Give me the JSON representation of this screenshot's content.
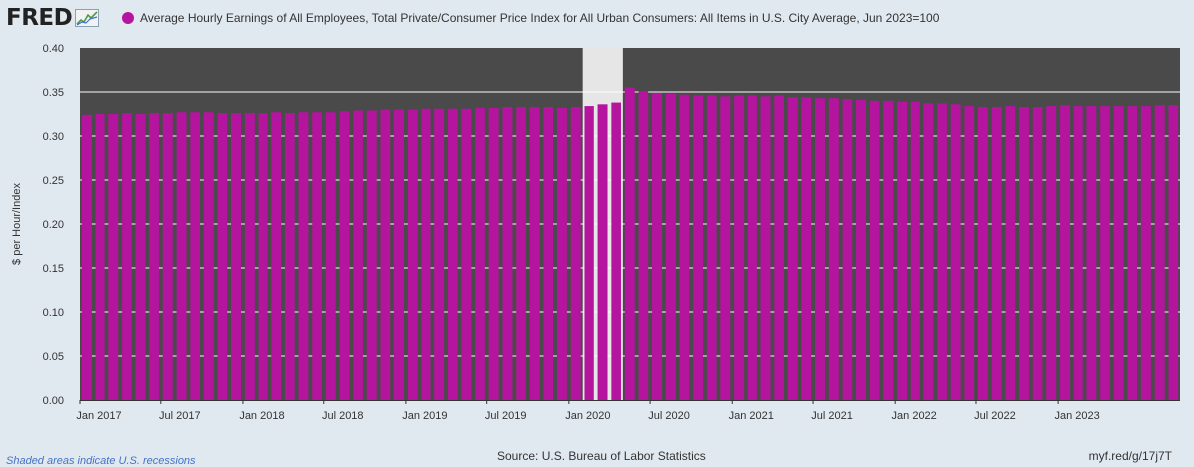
{
  "header": {
    "logo_text": "FRED",
    "logo_icon": "fred-chart-icon",
    "series_title": "Average Hourly Earnings of All Employees, Total Private/Consumer Price Index for All Urban Consumers: All Items in U.S. City Average, Jun 2023=100"
  },
  "footer": {
    "recession_note": "Shaded areas indicate U.S. recessions",
    "source": "Source: U.S. Bureau of Labor Statistics",
    "short_link": "myf.red/g/17j7T"
  },
  "colors": {
    "bar": "#b5159e",
    "plot_background": "#4a4a4a",
    "recession_shade": "#e6e6e6",
    "gridline": "#ffffff",
    "page_background": "#e1e9f0"
  },
  "chart_data": {
    "type": "bar",
    "ylabel": "$ per Hour/Index",
    "ylim": [
      0,
      0.4
    ],
    "yticks": [
      "0.00",
      "0.05",
      "0.10",
      "0.15",
      "0.20",
      "0.25",
      "0.30",
      "0.35",
      "0.40"
    ],
    "grid": true,
    "recessions": [
      {
        "start": "2020-02",
        "end": "2020-04"
      }
    ],
    "x_tick_labels": [
      {
        "date": "2017-01",
        "label": "Jan 2017"
      },
      {
        "date": "2017-07",
        "label": "Jul 2017"
      },
      {
        "date": "2018-01",
        "label": "Jan 2018"
      },
      {
        "date": "2018-07",
        "label": "Jul 2018"
      },
      {
        "date": "2019-01",
        "label": "Jan 2019"
      },
      {
        "date": "2019-07",
        "label": "Jul 2019"
      },
      {
        "date": "2020-01",
        "label": "Jan 2020"
      },
      {
        "date": "2020-07",
        "label": "Jul 2020"
      },
      {
        "date": "2021-01",
        "label": "Jan 2021"
      },
      {
        "date": "2021-07",
        "label": "Jul 2021"
      },
      {
        "date": "2022-01",
        "label": "Jan 2022"
      },
      {
        "date": "2022-07",
        "label": "Jul 2022"
      },
      {
        "date": "2023-01",
        "label": "Jan 2023"
      }
    ],
    "categories": [
      "2017-01",
      "2017-02",
      "2017-03",
      "2017-04",
      "2017-05",
      "2017-06",
      "2017-07",
      "2017-08",
      "2017-09",
      "2017-10",
      "2017-11",
      "2017-12",
      "2018-01",
      "2018-02",
      "2018-03",
      "2018-04",
      "2018-05",
      "2018-06",
      "2018-07",
      "2018-08",
      "2018-09",
      "2018-10",
      "2018-11",
      "2018-12",
      "2019-01",
      "2019-02",
      "2019-03",
      "2019-04",
      "2019-05",
      "2019-06",
      "2019-07",
      "2019-08",
      "2019-09",
      "2019-10",
      "2019-11",
      "2019-12",
      "2020-01",
      "2020-02",
      "2020-03",
      "2020-04",
      "2020-05",
      "2020-06",
      "2020-07",
      "2020-08",
      "2020-09",
      "2020-10",
      "2020-11",
      "2020-12",
      "2021-01",
      "2021-02",
      "2021-03",
      "2021-04",
      "2021-05",
      "2021-06",
      "2021-07",
      "2021-08",
      "2021-09",
      "2021-10",
      "2021-11",
      "2021-12",
      "2022-01",
      "2022-02",
      "2022-03",
      "2022-04",
      "2022-05",
      "2022-06",
      "2022-07",
      "2022-08",
      "2022-09",
      "2022-10",
      "2022-11",
      "2022-12",
      "2023-01",
      "2023-02",
      "2023-03",
      "2023-04",
      "2023-05",
      "2023-06",
      "2023-07",
      "2023-08",
      "2023-09"
    ],
    "values": [
      0.324,
      0.325,
      0.325,
      0.326,
      0.325,
      0.326,
      0.326,
      0.327,
      0.327,
      0.327,
      0.326,
      0.326,
      0.326,
      0.326,
      0.327,
      0.326,
      0.327,
      0.327,
      0.327,
      0.328,
      0.329,
      0.329,
      0.33,
      0.33,
      0.33,
      0.331,
      0.331,
      0.331,
      0.331,
      0.332,
      0.332,
      0.333,
      0.333,
      0.333,
      0.333,
      0.332,
      0.333,
      0.334,
      0.336,
      0.338,
      0.355,
      0.351,
      0.349,
      0.348,
      0.347,
      0.346,
      0.346,
      0.345,
      0.346,
      0.346,
      0.345,
      0.346,
      0.344,
      0.344,
      0.343,
      0.343,
      0.342,
      0.341,
      0.34,
      0.34,
      0.339,
      0.339,
      0.337,
      0.337,
      0.336,
      0.334,
      0.333,
      0.333,
      0.334,
      0.333,
      0.333,
      0.334,
      0.335,
      0.334,
      0.334,
      0.334,
      0.334,
      0.334,
      0.334,
      0.335,
      0.335
    ]
  }
}
